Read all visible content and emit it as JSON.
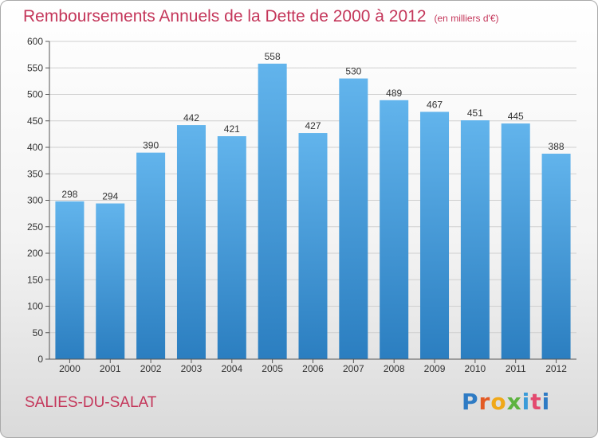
{
  "header": {
    "title": "Remboursements Annuels de la Dette de 2000 à 2012",
    "subtitle": "(en milliers d'€)"
  },
  "commune": "SALIES-DU-SALAT",
  "logo": {
    "text": "Proxiti",
    "colors": [
      "#2e7bc4",
      "#e35a24",
      "#f0a818",
      "#5db33f",
      "#3a9bd8",
      "#e34a6f",
      "#2e7bc4"
    ]
  },
  "colors": {
    "bar_top": "#62b4ec",
    "bar_bottom": "#2b7ec0",
    "grid": "#cfcfcf",
    "title": "#c4365a"
  },
  "chart_data": {
    "type": "bar",
    "categories": [
      "2000",
      "2001",
      "2002",
      "2003",
      "2004",
      "2005",
      "2006",
      "2007",
      "2008",
      "2009",
      "2010",
      "2011",
      "2012"
    ],
    "values": [
      298,
      294,
      390,
      442,
      421,
      558,
      427,
      530,
      489,
      467,
      451,
      445,
      388
    ],
    "ylim": [
      0,
      600
    ],
    "yticks": [
      0,
      50,
      100,
      150,
      200,
      250,
      300,
      350,
      400,
      450,
      500,
      550,
      600
    ],
    "grid": true
  }
}
